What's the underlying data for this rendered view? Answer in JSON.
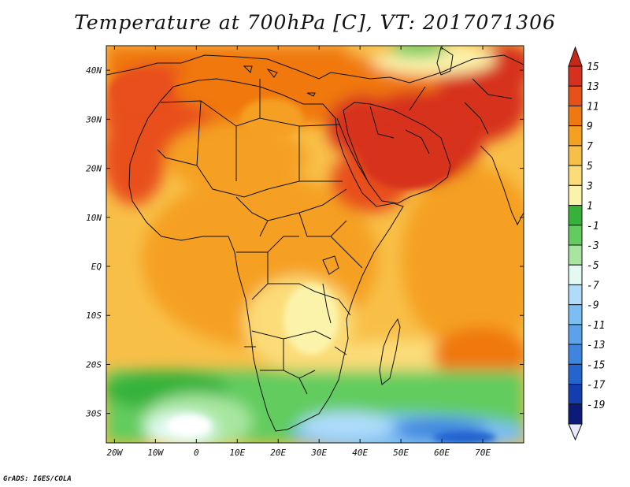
{
  "title": "Temperature at 700hPa [C], VT: 2017071306",
  "credit": "GrADS: IGES/COLA",
  "map": {
    "extent": {
      "lon": [
        -22,
        80
      ],
      "lat": [
        -36,
        45
      ]
    },
    "lon_ticks": [
      {
        "value": -20,
        "label": "20W"
      },
      {
        "value": -10,
        "label": "10W"
      },
      {
        "value": 0,
        "label": "0"
      },
      {
        "value": 10,
        "label": "10E"
      },
      {
        "value": 20,
        "label": "20E"
      },
      {
        "value": 30,
        "label": "30E"
      },
      {
        "value": 40,
        "label": "40E"
      },
      {
        "value": 50,
        "label": "50E"
      },
      {
        "value": 60,
        "label": "60E"
      },
      {
        "value": 70,
        "label": "70E"
      }
    ],
    "lat_ticks": [
      {
        "value": 40,
        "label": "40N"
      },
      {
        "value": 30,
        "label": "30N"
      },
      {
        "value": 20,
        "label": "20N"
      },
      {
        "value": 10,
        "label": "10N"
      },
      {
        "value": 0,
        "label": "EQ"
      },
      {
        "value": -10,
        "label": "10S"
      },
      {
        "value": -20,
        "label": "20S"
      },
      {
        "value": -30,
        "label": "30S"
      }
    ]
  },
  "colorbar": {
    "levels": [
      {
        "label": "15",
        "color": "#d7301f"
      },
      {
        "label": "13",
        "color": "#e8501a"
      },
      {
        "label": "11",
        "color": "#f07810"
      },
      {
        "label": "9",
        "color": "#f5a020"
      },
      {
        "label": "7",
        "color": "#f8bf48"
      },
      {
        "label": "5",
        "color": "#fbdc78"
      },
      {
        "label": "3",
        "color": "#fcf3aa"
      },
      {
        "label": "1",
        "color": "#36b23a"
      },
      {
        "label": "-1",
        "color": "#62cc5e"
      },
      {
        "label": "-3",
        "color": "#a8e6a0"
      },
      {
        "label": "-5",
        "color": "#e2faf2"
      },
      {
        "label": "-7",
        "color": "#aedcfa"
      },
      {
        "label": "-9",
        "color": "#7cbdf3"
      },
      {
        "label": "-11",
        "color": "#5aa2ea"
      },
      {
        "label": "-13",
        "color": "#3d85df"
      },
      {
        "label": "-15",
        "color": "#2464cf"
      },
      {
        "label": "-17",
        "color": "#143eb0"
      },
      {
        "label": "-19",
        "color": "#0c1a7a"
      }
    ],
    "overflow_high_color": "#c62818",
    "overflow_low_color": "#e8e8ff"
  }
}
